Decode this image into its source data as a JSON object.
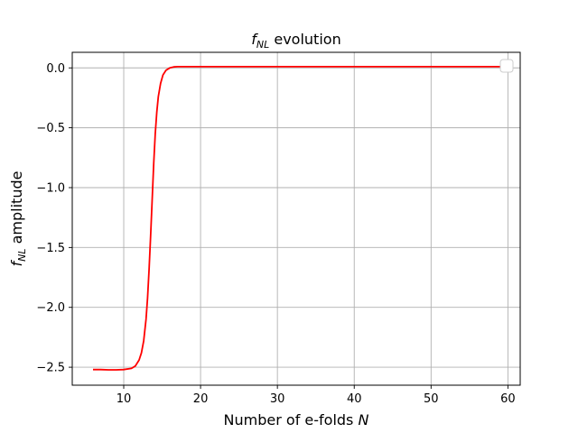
{
  "chart_data": {
    "type": "line",
    "title": {
      "main": "f",
      "sub": "NL",
      "rest": " evolution"
    },
    "xlabel": {
      "main": "Number of e-folds ",
      "var": "N"
    },
    "ylabel": {
      "main": "f",
      "sub": "NL",
      "rest": " amplitude"
    },
    "xlim": [
      3.3,
      61.6
    ],
    "ylim": [
      -2.65,
      0.13
    ],
    "xticks": [
      10,
      20,
      30,
      40,
      50,
      60
    ],
    "yticks": [
      0.0,
      -0.5,
      -1.0,
      -1.5,
      -2.0,
      -2.5
    ],
    "ytick_labels": [
      "0.0",
      "−0.5",
      "−1.0",
      "−1.5",
      "−2.0",
      "−2.5"
    ],
    "grid": true,
    "legend": {
      "placement": "top-right",
      "entries": []
    },
    "series": [
      {
        "color": "#ff0000",
        "x": [
          6,
          7,
          8,
          9,
          10,
          11,
          11.5,
          12,
          12.3,
          12.6,
          12.9,
          13.1,
          13.3,
          13.5,
          13.7,
          13.9,
          14.1,
          14.3,
          14.5,
          14.8,
          15.1,
          15.5,
          16,
          16.5,
          17,
          18,
          20,
          30,
          40,
          50,
          60
        ],
        "y": [
          -2.52,
          -2.52,
          -2.522,
          -2.522,
          -2.52,
          -2.51,
          -2.49,
          -2.44,
          -2.38,
          -2.28,
          -2.1,
          -1.92,
          -1.68,
          -1.4,
          -1.1,
          -0.8,
          -0.55,
          -0.37,
          -0.24,
          -0.13,
          -0.06,
          -0.02,
          0.0,
          0.008,
          0.01,
          0.01,
          0.01,
          0.01,
          0.01,
          0.01,
          0.01
        ]
      }
    ]
  }
}
